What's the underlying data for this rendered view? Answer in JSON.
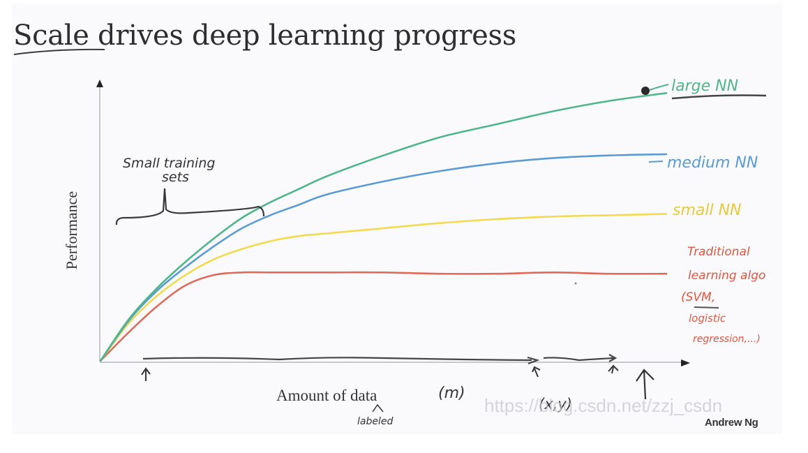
{
  "slide": {
    "title": "Scale drives deep learning progress",
    "title_underlined_word": "Scale",
    "author": "Andrew Ng",
    "watermark": "https://blog.csdn.net/zzj_csdn"
  },
  "chart_data": {
    "type": "line",
    "title": "Scale drives deep learning progress",
    "xlabel": "Amount of data",
    "ylabel": "Performance",
    "x_annotations": [
      "(m)",
      "labeled",
      "(x,y)"
    ],
    "brace_annotation": "Small training sets",
    "grid": false,
    "legend_position": "right (inline labels at line ends)",
    "x": [
      0,
      5,
      10,
      15,
      20,
      25,
      30,
      35,
      40,
      50,
      60,
      70,
      80,
      90,
      100
    ],
    "series": [
      {
        "name": "large NN",
        "color": "#4fb58a",
        "values": [
          0,
          16,
          28,
          38,
          47,
          55,
          61,
          66,
          71,
          79,
          86,
          91,
          96,
          100,
          103
        ],
        "marker_at_end": true
      },
      {
        "name": "medium NN",
        "color": "#5a9bd4",
        "values": [
          0,
          15.5,
          27,
          36,
          44,
          51,
          56,
          60,
          64,
          69,
          73,
          76,
          78,
          79,
          79.5
        ]
      },
      {
        "name": "small NN",
        "color": "#f2d94e",
        "values": [
          0,
          14.5,
          25,
          33,
          39,
          43,
          46,
          48,
          49,
          51,
          53,
          54.5,
          55.5,
          56,
          56.5
        ]
      },
      {
        "name": "Traditional learning algo (SVM, logistic regression,...)",
        "color": "#e06a5a",
        "values": [
          0,
          11,
          21,
          29,
          33,
          34,
          34,
          34,
          34,
          34,
          33.5,
          33.5,
          34,
          33.5,
          33.5
        ]
      }
    ],
    "xlim": [
      0,
      100
    ],
    "ylim": [
      0,
      110
    ]
  },
  "labels": {
    "large": "large NN",
    "medium": "medium NN",
    "small": "small NN",
    "trad_1": "Traditional",
    "trad_2": "learning algo",
    "trad_3": "(SVM,",
    "trad_4": "logistic",
    "trad_5": "regression,...)",
    "brace_1": "Small training",
    "brace_2": "sets",
    "x_m": "(m)",
    "x_labeled": "labeled",
    "x_xy": "(x,y)"
  }
}
